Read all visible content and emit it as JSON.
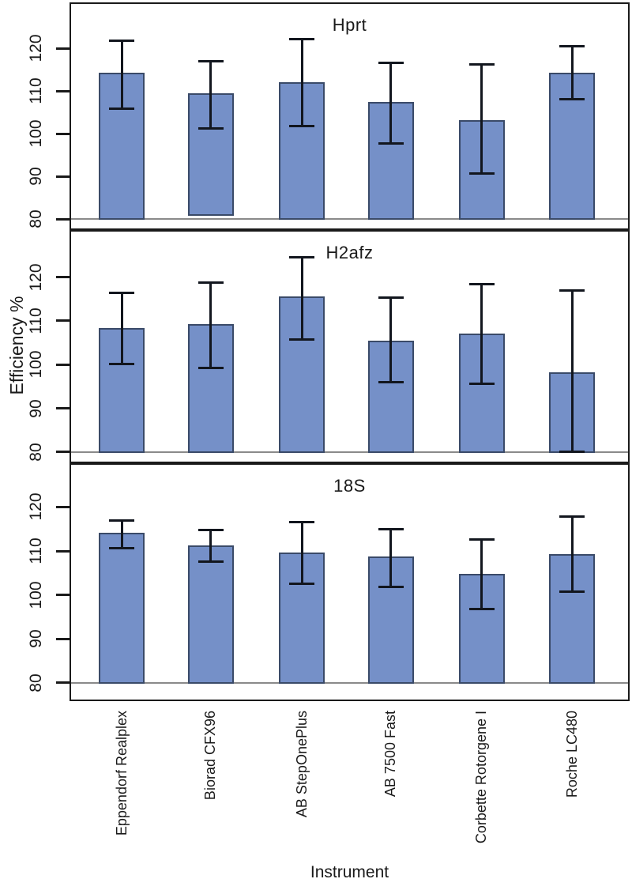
{
  "chart_data": {
    "type": "bar",
    "xlabel": "Instrument",
    "ylabel": "Efficiency %",
    "categories": [
      "Eppendorf Realplex",
      "Biorad CFX96",
      "AB StepOnePlus",
      "AB 7500 Fast",
      "Corbette Rotorgene I",
      "Roche LC480"
    ],
    "yticks": [
      80,
      90,
      100,
      110,
      120
    ],
    "ylim_display": [
      77.8,
      130.4
    ],
    "baseline_value": 80,
    "grid": false,
    "legend": false,
    "error_bars": true,
    "bar_color": "#7590c8",
    "bar_border_color": "#3a4a68",
    "error_bar_color": "#12161e",
    "frame_color": "#1a1a1a",
    "baseline_color": "#8a8a8a",
    "panels": [
      {
        "title": "Hprt",
        "values": [
          114.2,
          109.5,
          112.1,
          107.4,
          103.1,
          114.2
        ],
        "err_low": [
          105.7,
          101.1,
          101.6,
          97.7,
          90.6,
          107.9
        ],
        "err_high": [
          121.8,
          117.0,
          122.3,
          116.7,
          116.4,
          120.5
        ],
        "bar_base_overrides": {
          "1": 80.8
        }
      },
      {
        "title": "H2afz",
        "values": [
          108.4,
          109.2,
          115.5,
          105.5,
          107.0,
          98.3
        ],
        "err_low": [
          100.1,
          99.1,
          105.6,
          95.8,
          95.5,
          79.9
        ],
        "err_high": [
          116.5,
          118.8,
          124.6,
          115.4,
          118.4,
          117.0
        ],
        "bar_base_overrides": {}
      },
      {
        "title": "18S",
        "values": [
          114.1,
          111.2,
          109.7,
          108.7,
          104.8,
          109.3
        ],
        "err_low": [
          110.6,
          107.4,
          102.5,
          101.8,
          96.7,
          100.6
        ],
        "err_high": [
          117.1,
          114.8,
          116.7,
          115.1,
          112.7,
          118.0
        ],
        "bar_base_overrides": {}
      }
    ]
  }
}
